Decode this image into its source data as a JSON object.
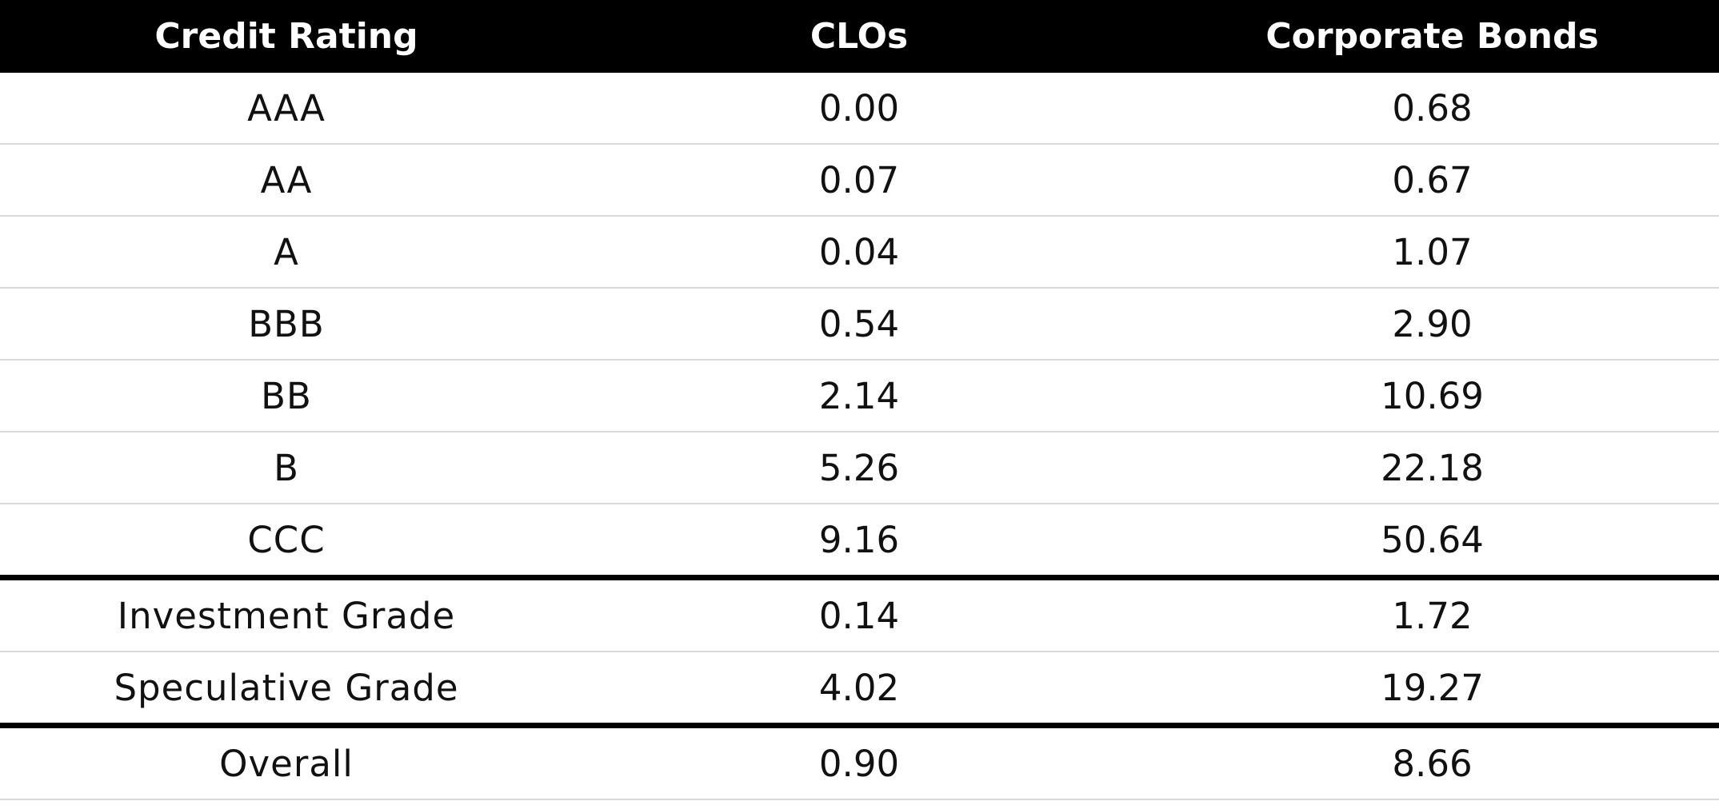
{
  "table": {
    "headers": [
      "Credit Rating",
      "CLOs",
      "Corporate Bonds"
    ],
    "rows": [
      {
        "rating": "AAA",
        "clos": "0.00",
        "corporate_bonds": "0.68"
      },
      {
        "rating": "AA",
        "clos": "0.07",
        "corporate_bonds": "0.67"
      },
      {
        "rating": "A",
        "clos": "0.04",
        "corporate_bonds": "1.07"
      },
      {
        "rating": "BBB",
        "clos": "0.54",
        "corporate_bonds": "2.90"
      },
      {
        "rating": "BB",
        "clos": "2.14",
        "corporate_bonds": "10.69"
      },
      {
        "rating": "B",
        "clos": "5.26",
        "corporate_bonds": "22.18"
      },
      {
        "rating": "CCC",
        "clos": "9.16",
        "corporate_bonds": "50.64"
      },
      {
        "rating": "Investment Grade",
        "clos": "0.14",
        "corporate_bonds": "1.72"
      },
      {
        "rating": "Speculative Grade",
        "clos": "4.02",
        "corporate_bonds": "19.27"
      },
      {
        "rating": "Overall",
        "clos": "0.90",
        "corporate_bonds": "8.66"
      }
    ]
  },
  "colors": {
    "header_background": "#000000",
    "header_text": "#ffffff",
    "row_divider": "#d9d9d9",
    "section_divider": "#000000"
  }
}
